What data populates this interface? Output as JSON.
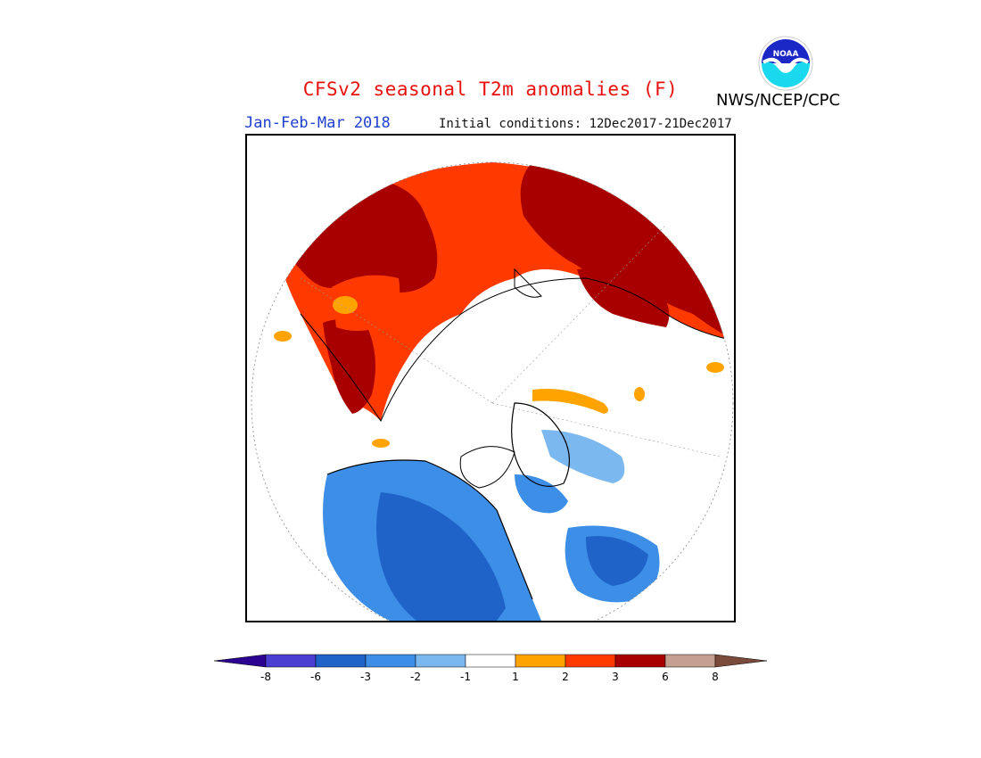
{
  "header": {
    "title": "CFSv2 seasonal T2m anomalies (F)",
    "period": "Jan-Feb-Mar 2018",
    "initial_conditions": "Initial conditions: 12Dec2017-21Dec2017",
    "organization": "NWS/NCEP/CPC",
    "logo_text": "NOAA"
  },
  "legend": {
    "ticks": [
      "-8",
      "-6",
      "-3",
      "-2",
      "-1",
      "1",
      "2",
      "3",
      "6",
      "8"
    ],
    "colors": {
      "below_min": "#2c0390",
      "c1": "#4a3fd0",
      "c2": "#1f62c8",
      "c3": "#3c8ee6",
      "c4": "#7cb8f0",
      "neutral": "#ffffff",
      "w1": "#ffa300",
      "w2": "#ff3a00",
      "w3": "#a80000",
      "w4": "#c49e8e",
      "above_max": "#7a4a3a"
    }
  },
  "map": {
    "projection": "north-polar-stereographic",
    "colors": {
      "cold_strong": "#1f62c8",
      "cold": "#3c8ee6",
      "cold_weak": "#7cb8f0",
      "warm_strong": "#a80000",
      "warm": "#ff3a00",
      "warm_weak": "#ffa300",
      "coast": "#000000"
    }
  }
}
